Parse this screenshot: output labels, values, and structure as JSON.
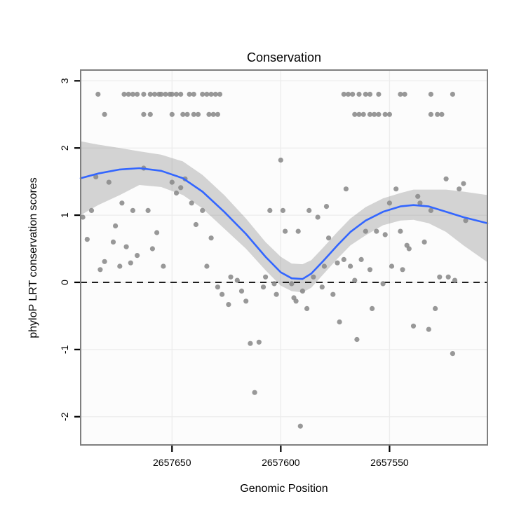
{
  "figure": {
    "kind": "statistical-plot",
    "background": "#ffffff"
  },
  "chart_data": {
    "type": "scatter",
    "title": "Conservation",
    "xlabel": "Genomic Position",
    "ylabel": "phyloP LRT conservation scores",
    "legend": "none",
    "grid": "major",
    "x_axis": {
      "reversed": true,
      "left_value": 2657692,
      "right_value": 2657505,
      "ticks": [
        2657650,
        2657600,
        2657550
      ]
    },
    "y_axis": {
      "min": -2.42,
      "max": 3.16,
      "ticks": [
        -2,
        -1,
        0,
        1,
        2,
        3
      ]
    },
    "zero_line_y": 0,
    "colors": {
      "point": "#8a8a8a",
      "smooth_line": "#3366ff",
      "band_fill": "rgba(125,125,125,0.32)",
      "grid": "#ececec",
      "panel_bg": "#fcfcfc",
      "panel_border": "#7f7f7f",
      "zero_line": "#000000",
      "tick": "#000000"
    },
    "points": [
      [
        2657691,
        0.97
      ],
      [
        2657689,
        0.64
      ],
      [
        2657687,
        1.07
      ],
      [
        2657685,
        1.57
      ],
      [
        2657683,
        0.19
      ],
      [
        2657681,
        0.31
      ],
      [
        2657679,
        1.49
      ],
      [
        2657677,
        0.6
      ],
      [
        2657676,
        0.84
      ],
      [
        2657674,
        0.24
      ],
      [
        2657673,
        1.18
      ],
      [
        2657671,
        0.53
      ],
      [
        2657669,
        0.29
      ],
      [
        2657668,
        1.07
      ],
      [
        2657666,
        0.4
      ],
      [
        2657663,
        1.7
      ],
      [
        2657661,
        1.07
      ],
      [
        2657659,
        0.5
      ],
      [
        2657657,
        0.74
      ],
      [
        2657654,
        0.24
      ],
      [
        2657650,
        1.49
      ],
      [
        2657648,
        1.33
      ],
      [
        2657646,
        1.41
      ],
      [
        2657644,
        1.54
      ],
      [
        2657641,
        1.18
      ],
      [
        2657639,
        0.86
      ],
      [
        2657636,
        1.07
      ],
      [
        2657634,
        0.24
      ],
      [
        2657632,
        0.66
      ],
      [
        2657629,
        -0.07
      ],
      [
        2657627,
        -0.18
      ],
      [
        2657624,
        -0.33
      ],
      [
        2657623,
        0.08
      ],
      [
        2657620,
        0.03
      ],
      [
        2657618,
        -0.13
      ],
      [
        2657616,
        -0.28
      ],
      [
        2657614,
        -0.91
      ],
      [
        2657612,
        -1.64
      ],
      [
        2657610,
        -0.89
      ],
      [
        2657608,
        -0.07
      ],
      [
        2657607,
        0.08
      ],
      [
        2657605,
        1.07
      ],
      [
        2657603,
        -0.02
      ],
      [
        2657602,
        -0.18
      ],
      [
        2657600,
        1.82
      ],
      [
        2657599,
        1.07
      ],
      [
        2657598,
        0.76
      ],
      [
        2657595,
        -0.02
      ],
      [
        2657594,
        -0.23
      ],
      [
        2657593,
        -0.28
      ],
      [
        2657592,
        0.76
      ],
      [
        2657591,
        -2.14
      ],
      [
        2657590,
        -0.13
      ],
      [
        2657588,
        -0.39
      ],
      [
        2657587,
        1.07
      ],
      [
        2657585,
        0.08
      ],
      [
        2657583,
        0.97
      ],
      [
        2657581,
        -0.07
      ],
      [
        2657580,
        0.24
      ],
      [
        2657579,
        1.13
      ],
      [
        2657578,
        0.66
      ],
      [
        2657576,
        -0.18
      ],
      [
        2657574,
        0.29
      ],
      [
        2657573,
        -0.59
      ],
      [
        2657571,
        0.34
      ],
      [
        2657570,
        1.39
      ],
      [
        2657568,
        0.24
      ],
      [
        2657566,
        0.03
      ],
      [
        2657565,
        -0.85
      ],
      [
        2657563,
        0.34
      ],
      [
        2657561,
        0.76
      ],
      [
        2657559,
        0.19
      ],
      [
        2657558,
        -0.39
      ],
      [
        2657556,
        0.76
      ],
      [
        2657553,
        -0.02
      ],
      [
        2657552,
        0.71
      ],
      [
        2657550,
        1.18
      ],
      [
        2657549,
        0.24
      ],
      [
        2657547,
        1.39
      ],
      [
        2657545,
        0.76
      ],
      [
        2657544,
        0.19
      ],
      [
        2657542,
        0.55
      ],
      [
        2657541,
        0.5
      ],
      [
        2657539,
        -0.65
      ],
      [
        2657537,
        1.28
      ],
      [
        2657536,
        1.18
      ],
      [
        2657534,
        0.6
      ],
      [
        2657532,
        -0.7
      ],
      [
        2657531,
        1.07
      ],
      [
        2657529,
        -0.39
      ],
      [
        2657527,
        0.08
      ],
      [
        2657524,
        1.54
      ],
      [
        2657523,
        0.08
      ],
      [
        2657521,
        -1.06
      ],
      [
        2657520,
        0.03
      ],
      [
        2657518,
        1.39
      ],
      [
        2657516,
        1.47
      ],
      [
        2657515,
        0.92
      ],
      [
        2657684,
        2.8
      ],
      [
        2657672,
        2.8
      ],
      [
        2657670,
        2.8
      ],
      [
        2657668,
        2.8
      ],
      [
        2657666,
        2.8
      ],
      [
        2657663,
        2.8
      ],
      [
        2657660,
        2.8
      ],
      [
        2657658,
        2.8
      ],
      [
        2657656,
        2.8
      ],
      [
        2657655,
        2.8
      ],
      [
        2657653,
        2.8
      ],
      [
        2657651,
        2.8
      ],
      [
        2657650,
        2.8
      ],
      [
        2657648,
        2.8
      ],
      [
        2657646,
        2.8
      ],
      [
        2657642,
        2.8
      ],
      [
        2657640,
        2.8
      ],
      [
        2657636,
        2.8
      ],
      [
        2657634,
        2.8
      ],
      [
        2657632,
        2.8
      ],
      [
        2657630,
        2.8
      ],
      [
        2657628,
        2.8
      ],
      [
        2657571,
        2.8
      ],
      [
        2657569,
        2.8
      ],
      [
        2657567,
        2.8
      ],
      [
        2657564,
        2.8
      ],
      [
        2657561,
        2.8
      ],
      [
        2657559,
        2.8
      ],
      [
        2657555,
        2.8
      ],
      [
        2657545,
        2.8
      ],
      [
        2657543,
        2.8
      ],
      [
        2657531,
        2.8
      ],
      [
        2657521,
        2.8
      ],
      [
        2657681,
        2.5
      ],
      [
        2657663,
        2.5
      ],
      [
        2657660,
        2.5
      ],
      [
        2657650,
        2.5
      ],
      [
        2657645,
        2.5
      ],
      [
        2657643,
        2.5
      ],
      [
        2657640,
        2.5
      ],
      [
        2657638,
        2.5
      ],
      [
        2657633,
        2.5
      ],
      [
        2657631,
        2.5
      ],
      [
        2657629,
        2.5
      ],
      [
        2657566,
        2.5
      ],
      [
        2657564,
        2.5
      ],
      [
        2657562,
        2.5
      ],
      [
        2657559,
        2.5
      ],
      [
        2657557,
        2.5
      ],
      [
        2657555,
        2.5
      ],
      [
        2657552,
        2.5
      ],
      [
        2657550,
        2.5
      ],
      [
        2657531,
        2.5
      ],
      [
        2657528,
        2.5
      ],
      [
        2657526,
        2.5
      ]
    ],
    "smooth_line": [
      [
        2657692,
        1.55
      ],
      [
        2657684,
        1.62
      ],
      [
        2657674,
        1.68
      ],
      [
        2657665,
        1.7
      ],
      [
        2657655,
        1.66
      ],
      [
        2657645,
        1.55
      ],
      [
        2657636,
        1.35
      ],
      [
        2657626,
        1.05
      ],
      [
        2657616,
        0.72
      ],
      [
        2657607,
        0.38
      ],
      [
        2657600,
        0.15
      ],
      [
        2657595,
        0.06
      ],
      [
        2657590,
        0.05
      ],
      [
        2657586,
        0.13
      ],
      [
        2657581,
        0.3
      ],
      [
        2657574,
        0.55
      ],
      [
        2657568,
        0.75
      ],
      [
        2657561,
        0.92
      ],
      [
        2657553,
        1.05
      ],
      [
        2657545,
        1.13
      ],
      [
        2657539,
        1.15
      ],
      [
        2657532,
        1.13
      ],
      [
        2657524,
        1.05
      ],
      [
        2657516,
        0.97
      ],
      [
        2657505,
        0.88
      ]
    ],
    "confidence_band": [
      [
        2657692,
        1.0,
        2.1
      ],
      [
        2657684,
        1.15,
        2.05
      ],
      [
        2657674,
        1.3,
        2.0
      ],
      [
        2657665,
        1.45,
        1.95
      ],
      [
        2657655,
        1.42,
        1.9
      ],
      [
        2657645,
        1.3,
        1.8
      ],
      [
        2657636,
        1.1,
        1.6
      ],
      [
        2657626,
        0.8,
        1.3
      ],
      [
        2657616,
        0.5,
        0.95
      ],
      [
        2657607,
        0.18,
        0.6
      ],
      [
        2657600,
        -0.05,
        0.38
      ],
      [
        2657595,
        -0.13,
        0.28
      ],
      [
        2657590,
        -0.15,
        0.27
      ],
      [
        2657586,
        -0.08,
        0.33
      ],
      [
        2657581,
        0.1,
        0.5
      ],
      [
        2657574,
        0.35,
        0.75
      ],
      [
        2657568,
        0.55,
        0.95
      ],
      [
        2657561,
        0.7,
        1.12
      ],
      [
        2657553,
        0.85,
        1.25
      ],
      [
        2657545,
        0.92,
        1.33
      ],
      [
        2657539,
        0.93,
        1.38
      ],
      [
        2657532,
        0.88,
        1.38
      ],
      [
        2657524,
        0.75,
        1.38
      ],
      [
        2657516,
        0.55,
        1.35
      ],
      [
        2657505,
        0.3,
        1.3
      ]
    ]
  }
}
